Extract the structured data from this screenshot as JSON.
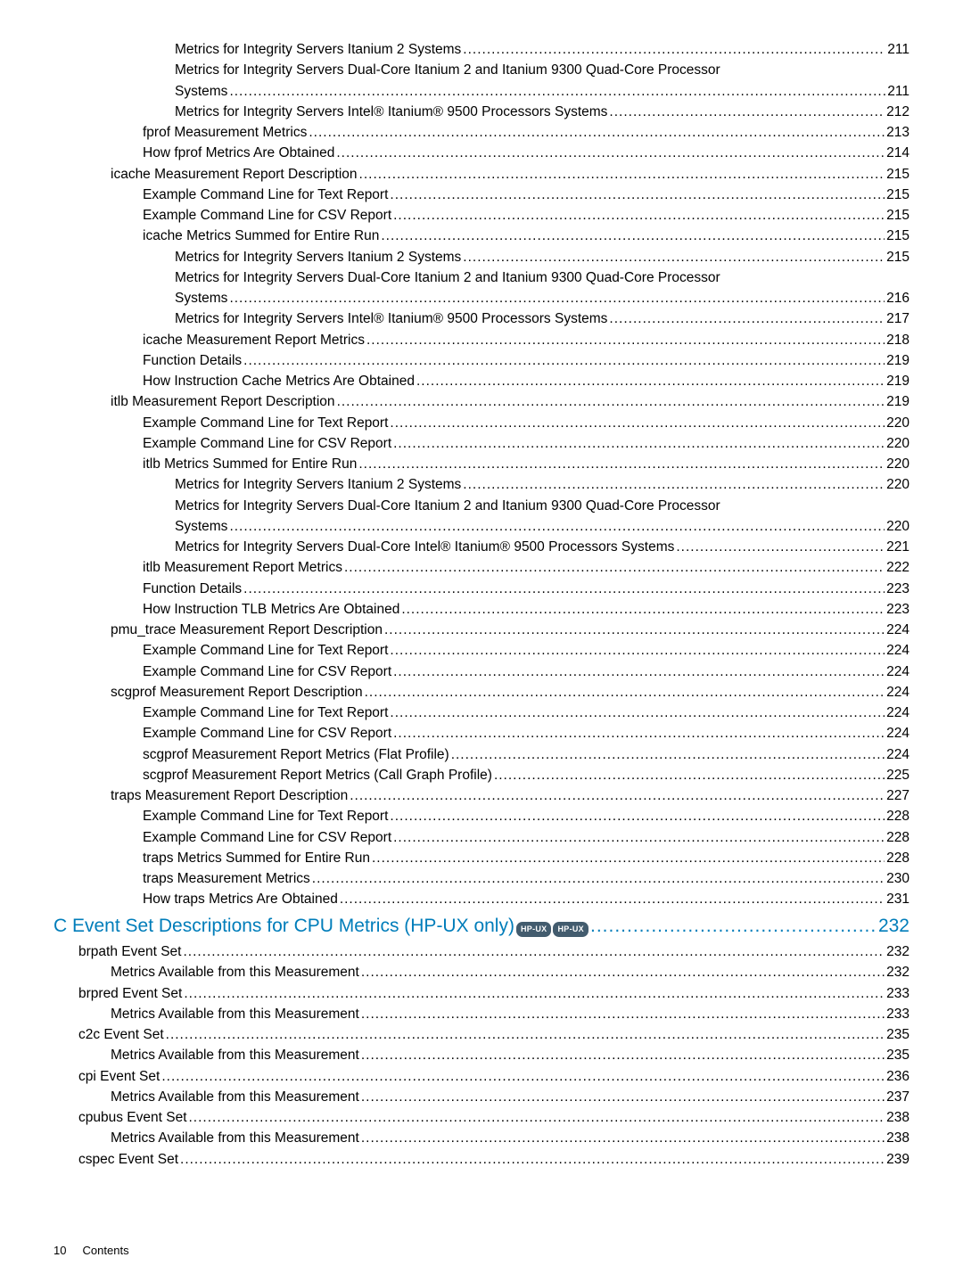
{
  "rows": [
    {
      "level": 4,
      "label": "Metrics for Integrity Servers Itanium 2 Systems",
      "page": "211"
    },
    {
      "level": 4,
      "label": "Metrics for Integrity Servers Dual-Core Itanium 2 and Itanium 9300 Quad-Core Processor",
      "cont": true
    },
    {
      "level": 4,
      "label": "Systems",
      "page": "211"
    },
    {
      "level": 4,
      "label": "Metrics for Integrity Servers Intel® Itanium® 9500 Processors Systems",
      "page": "212"
    },
    {
      "level": 3,
      "label": "fprof Measurement Metrics",
      "page": "213"
    },
    {
      "level": 3,
      "label": "How fprof Metrics Are Obtained",
      "page": "214"
    },
    {
      "level": 2,
      "label": "icache Measurement Report Description",
      "page": "215"
    },
    {
      "level": 3,
      "label": "Example Command Line for Text Report",
      "page": "215"
    },
    {
      "level": 3,
      "label": "Example Command Line for CSV Report",
      "page": "215"
    },
    {
      "level": 3,
      "label": "icache Metrics Summed for Entire Run",
      "page": "215"
    },
    {
      "level": 4,
      "label": "Metrics for Integrity Servers Itanium 2 Systems",
      "page": "215"
    },
    {
      "level": 4,
      "label": "Metrics for Integrity Servers Dual-Core Itanium 2 and Itanium 9300 Quad-Core Processor",
      "cont": true
    },
    {
      "level": 4,
      "label": "Systems",
      "page": "216"
    },
    {
      "level": 4,
      "label": "Metrics for Integrity Servers Intel® Itanium® 9500 Processors Systems",
      "page": "217"
    },
    {
      "level": 3,
      "label": "icache Measurement Report Metrics",
      "page": "218"
    },
    {
      "level": 3,
      "label": "Function  Details",
      "page": "219"
    },
    {
      "level": 3,
      "label": "How Instruction Cache Metrics Are Obtained",
      "page": "219"
    },
    {
      "level": 2,
      "label": "itlb Measurement Report Description",
      "page": "219"
    },
    {
      "level": 3,
      "label": "Example Command Line for Text Report",
      "page": "220"
    },
    {
      "level": 3,
      "label": "Example Command Line for CSV Report",
      "page": "220"
    },
    {
      "level": 3,
      "label": "itlb Metrics Summed for Entire Run",
      "page": "220"
    },
    {
      "level": 4,
      "label": "Metrics for Integrity Servers Itanium 2 Systems",
      "page": "220"
    },
    {
      "level": 4,
      "label": "Metrics for Integrity Servers Dual-Core Itanium 2 and Itanium 9300 Quad-Core Processor",
      "cont": true
    },
    {
      "level": 4,
      "label": "Systems",
      "page": "220"
    },
    {
      "level": 4,
      "label": "Metrics for Integrity Servers Dual-Core Intel® Itanium® 9500 Processors Systems",
      "page": "221"
    },
    {
      "level": 3,
      "label": "itlb Measurement Report Metrics",
      "page": "222"
    },
    {
      "level": 3,
      "label": "Function  Details",
      "page": "223"
    },
    {
      "level": 3,
      "label": "How Instruction TLB Metrics Are Obtained",
      "page": "223"
    },
    {
      "level": 2,
      "label": "pmu_trace Measurement Report Description",
      "page": "224"
    },
    {
      "level": 3,
      "label": "Example Command Line for Text Report",
      "page": "224"
    },
    {
      "level": 3,
      "label": "Example Command Line for CSV Report",
      "page": "224"
    },
    {
      "level": 2,
      "label": "scgprof Measurement Report Description",
      "page": "224"
    },
    {
      "level": 3,
      "label": "Example Command Line for Text Report",
      "page": "224"
    },
    {
      "level": 3,
      "label": "Example Command Line for CSV Report",
      "page": "224"
    },
    {
      "level": 3,
      "label": "scgprof Measurement Report Metrics (Flat Profile)",
      "page": "224"
    },
    {
      "level": 3,
      "label": "scgprof Measurement Report Metrics (Call Graph Profile)",
      "page": "225"
    },
    {
      "level": 2,
      "label": "traps Measurement Report Description",
      "page": "227"
    },
    {
      "level": 3,
      "label": "Example Command Line for Text Report",
      "page": "228"
    },
    {
      "level": 3,
      "label": "Example Command Line for CSV Report",
      "page": "228"
    },
    {
      "level": 3,
      "label": "traps Metrics Summed for Entire Run",
      "page": "228"
    },
    {
      "level": 3,
      "label": "traps Measurement Metrics",
      "page": "230"
    },
    {
      "level": 3,
      "label": "How traps Metrics Are Obtained",
      "page": "231"
    },
    {
      "level": -1,
      "label": "C Event Set Descriptions for CPU Metrics (HP-UX only)",
      "page": "232",
      "badges": [
        "HP-UX",
        "HP-UX"
      ]
    },
    {
      "level": 1,
      "label": "brpath Event Set",
      "page": "232"
    },
    {
      "level": 2,
      "label": "Metrics Available from this Measurement",
      "page": "232"
    },
    {
      "level": 1,
      "label": "brpred Event Set",
      "page": "233"
    },
    {
      "level": 2,
      "label": "Metrics Available from this Measurement",
      "page": "233"
    },
    {
      "level": 1,
      "label": "c2c Event Set",
      "page": "235"
    },
    {
      "level": 2,
      "label": "Metrics Available from this Measurement",
      "page": "235"
    },
    {
      "level": 1,
      "label": "cpi Event Set",
      "page": "236"
    },
    {
      "level": 2,
      "label": "Metrics Available from this Measurement",
      "page": "237"
    },
    {
      "level": 1,
      "label": "cpubus Event Set",
      "page": "238"
    },
    {
      "level": 2,
      "label": "Metrics Available from this Measurement",
      "page": "238"
    },
    {
      "level": 1,
      "label": "cspec Event Set",
      "page": "239"
    }
  ],
  "footer": {
    "pageNum": "10",
    "label": "Contents"
  }
}
